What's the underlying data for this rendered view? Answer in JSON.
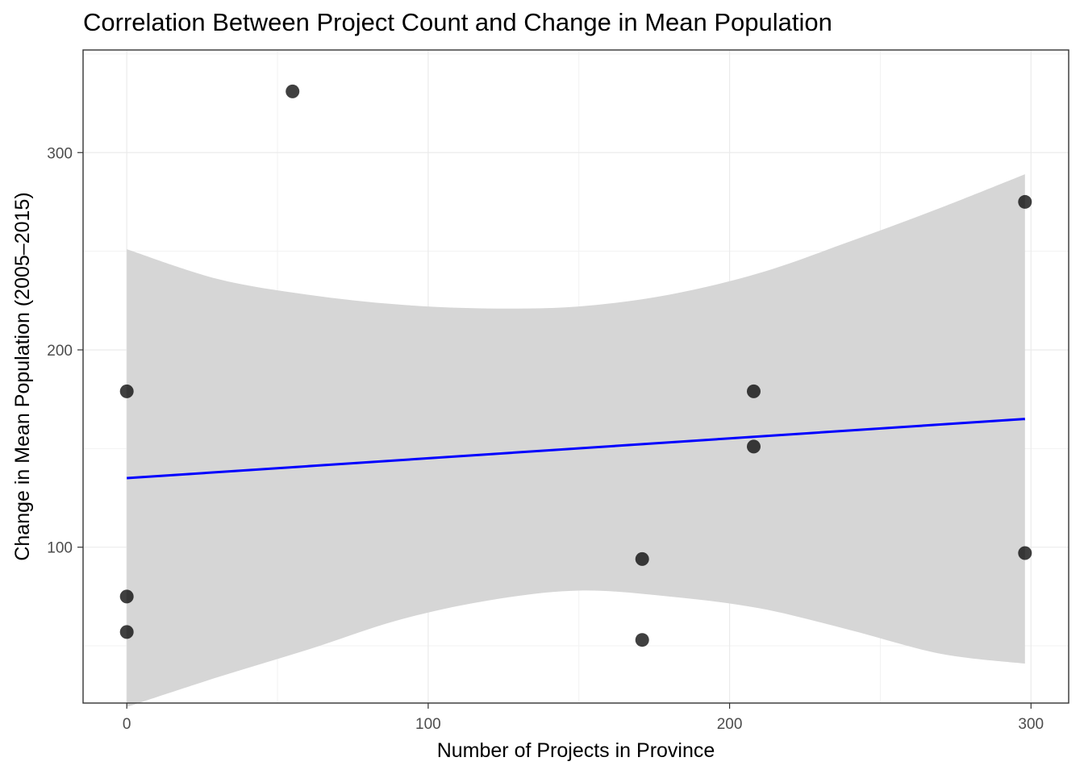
{
  "chart_data": {
    "type": "scatter",
    "title": "Correlation Between Project Count and Change in Mean Population",
    "xlabel": "Number of Projects in Province",
    "ylabel": "Change in Mean Population (2005–2015)",
    "xlim": [
      -14.5,
      312.5
    ],
    "ylim": [
      21,
      352
    ],
    "x_ticks": [
      0,
      100,
      200,
      300
    ],
    "y_ticks": [
      100,
      200,
      300
    ],
    "x_tick_labels": [
      "0",
      "100",
      "200",
      "300"
    ],
    "y_tick_labels": [
      "100",
      "200",
      "300"
    ],
    "grid": true,
    "points": [
      {
        "x": 0,
        "y": 179
      },
      {
        "x": 0,
        "y": 75
      },
      {
        "x": 0,
        "y": 57
      },
      {
        "x": 55,
        "y": 331
      },
      {
        "x": 171,
        "y": 94
      },
      {
        "x": 171,
        "y": 53
      },
      {
        "x": 208,
        "y": 179
      },
      {
        "x": 208,
        "y": 151
      },
      {
        "x": 298,
        "y": 275
      },
      {
        "x": 298,
        "y": 97
      }
    ],
    "fit_line": {
      "x": [
        0,
        298
      ],
      "y": [
        135,
        165
      ],
      "color": "#0000ff"
    },
    "confidence_band": {
      "x": [
        0,
        30,
        60,
        90,
        120,
        150,
        180,
        210,
        240,
        270,
        298
      ],
      "upper": [
        251,
        236,
        228,
        223,
        221,
        222,
        228,
        239,
        255,
        272,
        289
      ],
      "lower": [
        19,
        34,
        48,
        63,
        73,
        78,
        75,
        69,
        58,
        46,
        41
      ],
      "color": "#d6d6d6"
    },
    "point_color": "#000000",
    "point_alpha": 0.75
  }
}
